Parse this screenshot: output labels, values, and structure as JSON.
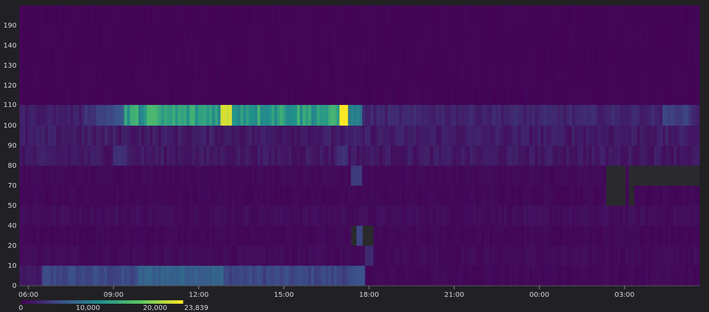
{
  "chart_data": {
    "type": "heatmap",
    "title": "",
    "xlabel": "",
    "ylabel": "",
    "x_tick_labels": [
      "06:00",
      "09:00",
      "12:00",
      "15:00",
      "18:00",
      "21:00",
      "00:00",
      "03:00"
    ],
    "y_buckets": [
      "0",
      "10",
      "20",
      "40",
      "50",
      "70",
      "80",
      "90",
      "100",
      "110",
      "120",
      "130",
      "140",
      "190"
    ],
    "x_range": [
      "05:20",
      "05:20 (+1 day)"
    ],
    "time_bins": 240,
    "grid": true,
    "legend": {
      "position": "bottom-left",
      "colormap": [
        "#440154",
        "#3b528b",
        "#21918c",
        "#5ec962",
        "#fde725"
      ],
      "ticks": [
        "0",
        "10,000",
        "20,000",
        "23,839"
      ],
      "min": 0,
      "max": 23839
    },
    "bucket_levels": {
      "0": "low, ~2000-6000 from 06:00 to 17:15 (peak ~7000 around 10:00-12:00), ~500 after",
      "10": "~500-800 all day",
      "20": "no data 17:00-18:00; otherwise ~500",
      "40": "~500",
      "50": "~500; gap around 02:00-02:40",
      "70": "~600; spike ~4000 at 17:20",
      "80": "~1000-2000; ~3000 around 08:40 and 16:40",
      "90": "~1000-2500",
      "100": "~2000 at 06:00, rising to 15000-20000 between 09:00 and 16:30, max 23,839 at ~16:50, ~2500 after",
      "110": "~200",
      "120": "~200",
      "130": "~200",
      "140": "~200",
      "190": "~200"
    }
  }
}
